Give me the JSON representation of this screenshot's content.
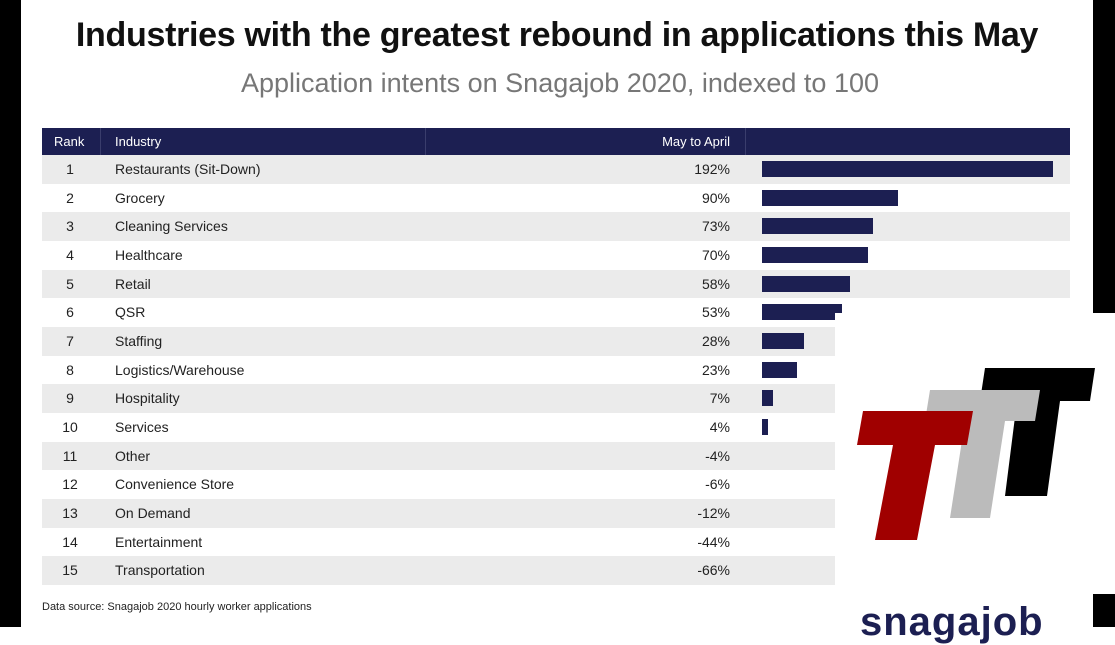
{
  "chart_data": {
    "type": "bar",
    "orientation": "horizontal",
    "title": "Industries with the greatest rebound in applications this May",
    "subtitle": "Application intents on Snagajob 2020, indexed to 100",
    "columns": [
      "Rank",
      "Industry",
      "May to April"
    ],
    "rows": [
      {
        "rank": "1",
        "industry": "Restaurants (Sit-Down)",
        "label": "192%",
        "value": 192
      },
      {
        "rank": "2",
        "industry": "Grocery",
        "label": "90%",
        "value": 90
      },
      {
        "rank": "3",
        "industry": "Cleaning Services",
        "label": "73%",
        "value": 73
      },
      {
        "rank": "4",
        "industry": "Healthcare",
        "label": "70%",
        "value": 70
      },
      {
        "rank": "5",
        "industry": "Retail",
        "label": "58%",
        "value": 58
      },
      {
        "rank": "6",
        "industry": "QSR",
        "label": "53%",
        "value": 53
      },
      {
        "rank": "7",
        "industry": "Staffing",
        "label": "28%",
        "value": 28
      },
      {
        "rank": "8",
        "industry": "Logistics/Warehouse",
        "label": "23%",
        "value": 23
      },
      {
        "rank": "9",
        "industry": "Hospitality",
        "label": "7%",
        "value": 7
      },
      {
        "rank": "10",
        "industry": "Services",
        "label": "4%",
        "value": 4
      },
      {
        "rank": "11",
        "industry": "Other",
        "label": "-4%",
        "value": -4
      },
      {
        "rank": "12",
        "industry": "Convenience Store",
        "label": "-6%",
        "value": -6
      },
      {
        "rank": "13",
        "industry": "On Demand",
        "label": "-12%",
        "value": -12
      },
      {
        "rank": "14",
        "industry": "Entertainment",
        "label": "-44%",
        "value": -44
      },
      {
        "rank": "15",
        "industry": "Transportation",
        "label": "-66%",
        "value": -66
      }
    ],
    "xlim": [
      0,
      192
    ],
    "bar_color": "#1c1f52",
    "source": "Data source: Snagajob 2020 hourly worker applications"
  },
  "brand": "snagajob",
  "overlay_logo": {
    "text": "TTT",
    "colors": [
      "#a00000",
      "#bbbbbb",
      "#000000"
    ]
  }
}
